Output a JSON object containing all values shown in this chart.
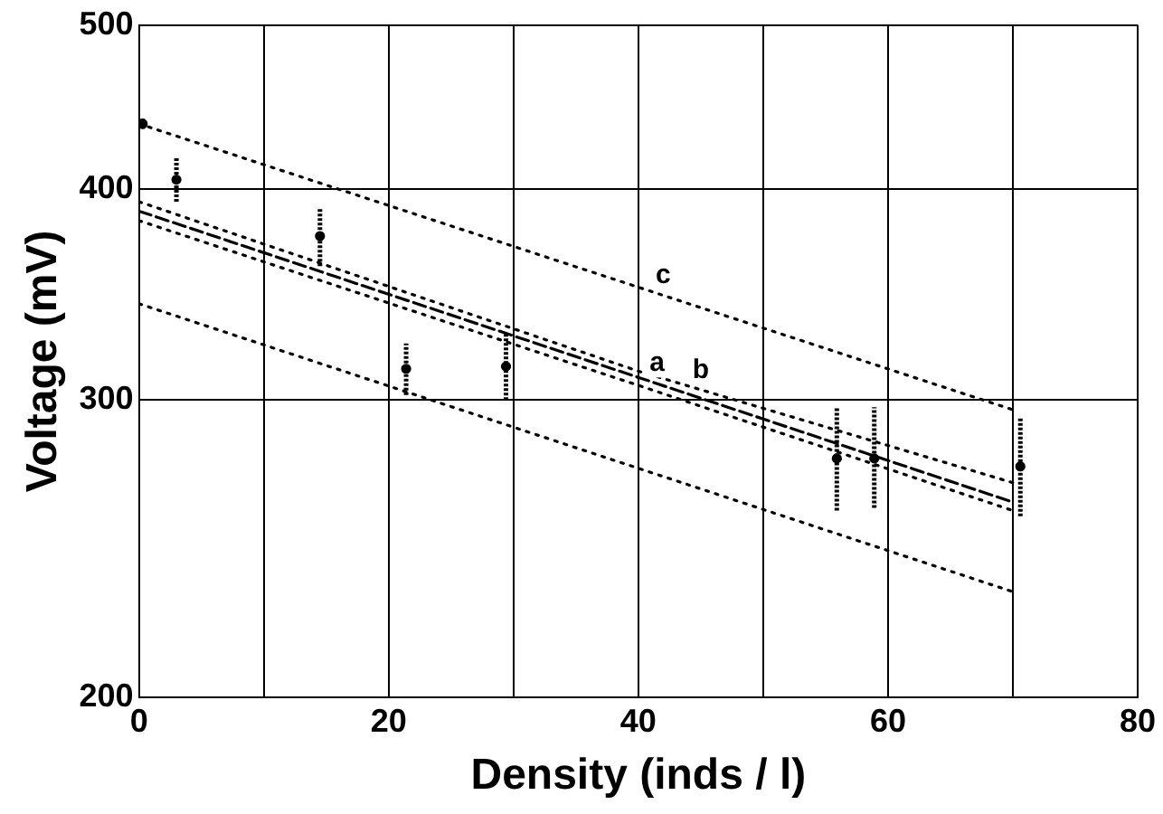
{
  "chart_data": {
    "type": "line",
    "xlabel": "Density (inds / l)",
    "ylabel": "Voltage (mV)",
    "log": "y",
    "grid": true,
    "legend": false,
    "marker": "none",
    "xlim": [
      0,
      80
    ],
    "xticks": [
      0,
      {
        "value": 10,
        "label": null
      },
      20,
      {
        "value": 30,
        "label": null
      },
      40,
      {
        "value": 50,
        "label": null
      },
      60,
      {
        "value": 70,
        "label": null
      },
      80
    ],
    "ylim": [
      200,
      500
    ],
    "yticks": [
      200,
      300,
      400,
      500
    ],
    "series": [
      {
        "color": "#000000",
        "line_style": "dashed",
        "x": [
          0,
          70
        ],
        "values": [
          388,
          261
        ]
      },
      {
        "color": "#000000",
        "line_style": "dotted",
        "x": [
          0,
          40,
          70
        ],
        "values": [
          393,
          312,
          268
        ]
      },
      {
        "color": "#000000",
        "line_style": "dotted",
        "x": [
          0,
          40,
          70
        ],
        "values": [
          383,
          306,
          258
        ]
      },
      {
        "color": "#000000",
        "line_style": "dotted",
        "x": [
          0,
          70
        ],
        "values": [
          437,
          296
        ]
      },
      {
        "color": "#000000",
        "line_style": "dotted",
        "x": [
          0,
          70
        ],
        "values": [
          342,
          231
        ]
      },
      {
        "type": "scatter",
        "color": "#000000",
        "marker": "circle",
        "x": [
          0.3,
          3,
          14.5,
          21.4,
          29.4,
          55.9,
          58.9,
          70.6
        ],
        "values": [
          437,
          405,
          375,
          313,
          314,
          277,
          277,
          274
        ],
        "errors": [
          [
            434,
            440
          ],
          [
            393,
            418
          ],
          [
            360,
            390
          ],
          [
            302,
            324
          ],
          [
            300,
            329
          ],
          [
            258,
            297
          ],
          [
            259,
            297
          ],
          [
            256,
            293
          ]
        ]
      }
    ],
    "annotations": [
      {
        "text": "a",
        "x": 41.5,
        "y": 307
      },
      {
        "text": "b",
        "x": 45,
        "y": 304
      },
      {
        "text": "c",
        "x": 42,
        "y": 346
      }
    ]
  }
}
